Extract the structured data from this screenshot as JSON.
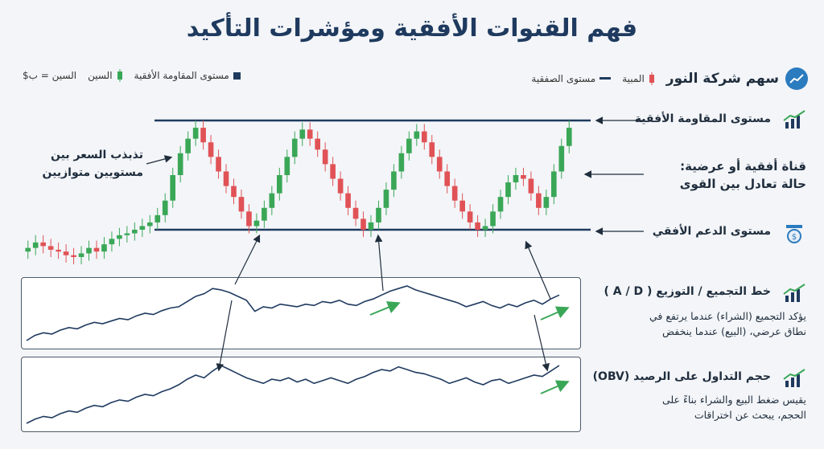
{
  "title": "فهم القنوات الأفقية ومؤشرات التأكيد",
  "legend": {
    "company": "سهم شركة النور",
    "bullish": "المبية",
    "trade_level": "مستوى الصفقية",
    "resistance": "مستوى المقاومة الأفقية",
    "sin": "السين",
    "sin_eq": "السين = ب$"
  },
  "labels": {
    "resistance": "مستوى المقاومة الأفقية",
    "channel_line1": "قناة أفقية أو عرضية:",
    "channel_line2": "حالة تعادل بين القوى",
    "support": "مستوى الدعم الأفقي",
    "oscillation_line1": "تذبذب السعر بين",
    "oscillation_line2": "مستويين متوازيين",
    "ad_title": "خط التجميع / التوزيع ( A / D )",
    "ad_desc1": "يؤكد التجميع (الشراء) عندما يرتفع في",
    "ad_desc2": "نطاق عرضي، (البيع) عندما ينخفض",
    "obv_title": "حجم التداول على الرصيد (OBV)",
    "obv_desc1": "يقيس ضغط البيع والشراء بناءً على",
    "obv_desc2": "الحجم، يبحث عن اختراقات"
  },
  "colors": {
    "up": "#3aa757",
    "down": "#e05256",
    "line": "#1f3a5f",
    "accent": "#3aa757"
  },
  "chart_data": [
    {
      "type": "candlestick",
      "title": "سهم شركة النور",
      "resistance": 100,
      "support": 40,
      "close": [
        30,
        33,
        31,
        29,
        28,
        26,
        25,
        27,
        30,
        28,
        32,
        35,
        37,
        38,
        40,
        42,
        44,
        48,
        56,
        70,
        82,
        90,
        96,
        88,
        80,
        72,
        64,
        58,
        50,
        42,
        45,
        52,
        60,
        70,
        80,
        90,
        95,
        90,
        84,
        76,
        68,
        60,
        52,
        46,
        40,
        44,
        52,
        62,
        72,
        82,
        90,
        94,
        88,
        80,
        72,
        64,
        56,
        50,
        44,
        40,
        42,
        50,
        58,
        66,
        70,
        68,
        60,
        52,
        58,
        72,
        86,
        96
      ]
    },
    {
      "type": "line",
      "title": "خط التجميع / التوزيع ( A / D )",
      "values": [
        10,
        18,
        22,
        20,
        26,
        30,
        28,
        34,
        38,
        36,
        40,
        44,
        42,
        48,
        52,
        50,
        56,
        60,
        62,
        70,
        78,
        82,
        90,
        88,
        84,
        78,
        72,
        55,
        62,
        60,
        66,
        64,
        62,
        66,
        64,
        70,
        68,
        72,
        66,
        64,
        70,
        74,
        80,
        86,
        90,
        94,
        88,
        84,
        80,
        76,
        72,
        68,
        62,
        66,
        70,
        64,
        60,
        66,
        62,
        68,
        72,
        66,
        74,
        80
      ]
    },
    {
      "type": "line",
      "title": "حجم التداول على الرصيد (OBV)",
      "values": [
        8,
        14,
        18,
        16,
        22,
        26,
        24,
        30,
        34,
        32,
        38,
        42,
        40,
        46,
        50,
        48,
        54,
        58,
        64,
        72,
        78,
        74,
        84,
        92,
        86,
        80,
        74,
        70,
        66,
        72,
        70,
        74,
        68,
        72,
        66,
        70,
        74,
        70,
        66,
        72,
        76,
        82,
        86,
        84,
        90,
        86,
        82,
        80,
        76,
        72,
        66,
        70,
        74,
        68,
        64,
        70,
        72,
        66,
        70,
        74,
        78,
        76,
        84,
        92
      ]
    }
  ]
}
